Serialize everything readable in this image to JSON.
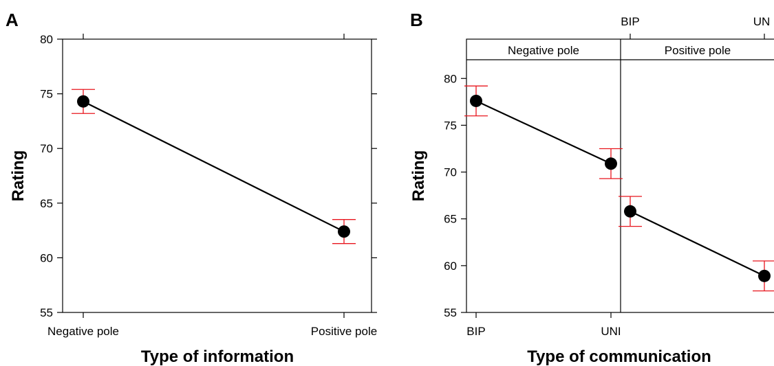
{
  "chart_data": [
    {
      "type": "line",
      "panel_label": "A",
      "xlabel": "Type of information",
      "ylabel": "Rating",
      "categories": [
        "Negative pole",
        "Positive pole"
      ],
      "ylim": [
        55,
        80
      ],
      "yticks": [
        55,
        60,
        65,
        70,
        75,
        80
      ],
      "series": [
        {
          "values": [
            74.3,
            62.4
          ],
          "ci_lower": [
            73.2,
            61.3
          ],
          "ci_upper": [
            75.4,
            63.5
          ]
        }
      ],
      "colors": {
        "line": "#000000",
        "error_bar": "#e8141c"
      }
    },
    {
      "type": "line",
      "panel_label": "B",
      "xlabel": "Type of communication",
      "ylabel": "Rating",
      "ylim": [
        55,
        82
      ],
      "yticks": [
        55,
        60,
        65,
        70,
        75,
        80
      ],
      "panels": [
        {
          "strip_label": "Negative pole",
          "categories": [
            "BIP",
            "UNI"
          ],
          "values": [
            77.6,
            70.9
          ],
          "ci_lower": [
            76.0,
            69.3
          ],
          "ci_upper": [
            79.2,
            72.5
          ]
        },
        {
          "strip_label": "Positive pole",
          "categories": [
            "BIP",
            "UN"
          ],
          "values": [
            65.8,
            58.9
          ],
          "ci_lower": [
            64.2,
            57.3
          ],
          "ci_upper": [
            67.4,
            60.5
          ]
        }
      ],
      "colors": {
        "line": "#000000",
        "error_bar": "#e8141c"
      }
    }
  ]
}
